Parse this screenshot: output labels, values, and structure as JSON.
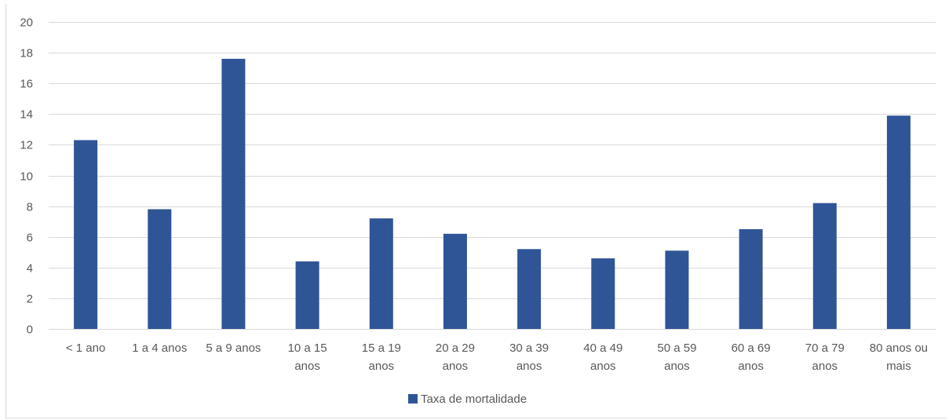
{
  "chart_data": {
    "type": "bar",
    "categories": [
      "< 1 ano",
      "1 a 4 anos",
      "5 a 9 anos",
      "10 a 15 anos",
      "15 a 19 anos",
      "20 a 29 anos",
      "30 a 39 anos",
      "40 a 49 anos",
      "50 a 59 anos",
      "60 a 69 anos",
      "70 a 79 anos",
      "80 anos ou mais"
    ],
    "category_lines": [
      [
        "< 1 ano"
      ],
      [
        "1 a 4 anos"
      ],
      [
        "5 a 9 anos"
      ],
      [
        "10 a 15",
        "anos"
      ],
      [
        "15 a 19",
        "anos"
      ],
      [
        "20 a 29",
        "anos"
      ],
      [
        "30 a 39",
        "anos"
      ],
      [
        "40 a 49",
        "anos"
      ],
      [
        "50 a 59",
        "anos"
      ],
      [
        "60 a 69",
        "anos"
      ],
      [
        "70 a 79",
        "anos"
      ],
      [
        "80 anos ou",
        "mais"
      ]
    ],
    "series": [
      {
        "name": "Taxa de mortalidade",
        "values": [
          12.3,
          7.8,
          17.6,
          4.4,
          7.2,
          6.2,
          5.2,
          4.6,
          5.1,
          6.5,
          8.2,
          13.9
        ],
        "color": "#2F5597"
      }
    ],
    "ylim": [
      0,
      20
    ],
    "yticks": [
      0,
      2,
      4,
      6,
      8,
      10,
      12,
      14,
      16,
      18,
      20
    ],
    "grid": true,
    "legend_position": "bottom",
    "title": "",
    "xlabel": "",
    "ylabel": ""
  },
  "colors": {
    "gridline": "#d9d9d9",
    "axis_text": "#595959",
    "bar": "#2F5597"
  }
}
